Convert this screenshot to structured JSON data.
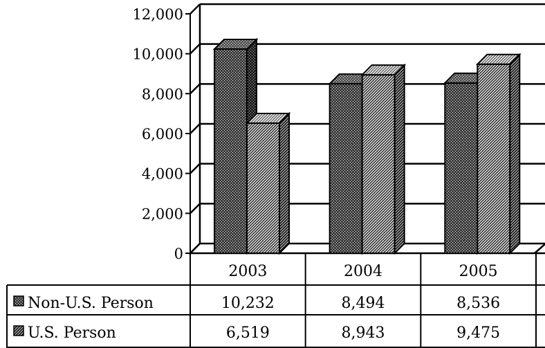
{
  "chart_data": {
    "type": "bar",
    "categories": [
      "2003",
      "2004",
      "2005"
    ],
    "series": [
      {
        "name": "Non-U.S. Person",
        "values": [
          10232,
          8494,
          8536
        ],
        "pattern": "dense-dots"
      },
      {
        "name": "U.S. Person",
        "values": [
          6519,
          8943,
          9475
        ],
        "pattern": "diagonal-hatch"
      }
    ],
    "yticks": [
      "0",
      "2,000",
      "4,000",
      "6,000",
      "8,000",
      "10,000",
      "12,000"
    ],
    "ylim": [
      0,
      12000
    ],
    "grid": true,
    "legend": "data-table",
    "table": {
      "rows": [
        {
          "label": "Non-U.S. Person",
          "cells": [
            "10,232",
            "8,494",
            "8,536"
          ]
        },
        {
          "label": "U.S. Person",
          "cells": [
            "6,519",
            "8,943",
            "9,475"
          ]
        }
      ]
    },
    "colors": {
      "bar_dark": "#4a4a4a",
      "bar_light": "#9a9a9a",
      "line": "#000000"
    }
  }
}
